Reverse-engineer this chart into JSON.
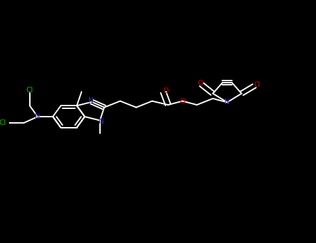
{
  "bg_color": "#000000",
  "bond_color": "#ffffff",
  "N_color": "#3333bb",
  "O_color": "#cc0000",
  "Cl_color": "#00bb00",
  "lw": 1.4,
  "layout": {
    "xlim": [
      0,
      1
    ],
    "ylim": [
      0,
      1
    ],
    "figw": 4.55,
    "figh": 3.5,
    "dpi": 100
  }
}
